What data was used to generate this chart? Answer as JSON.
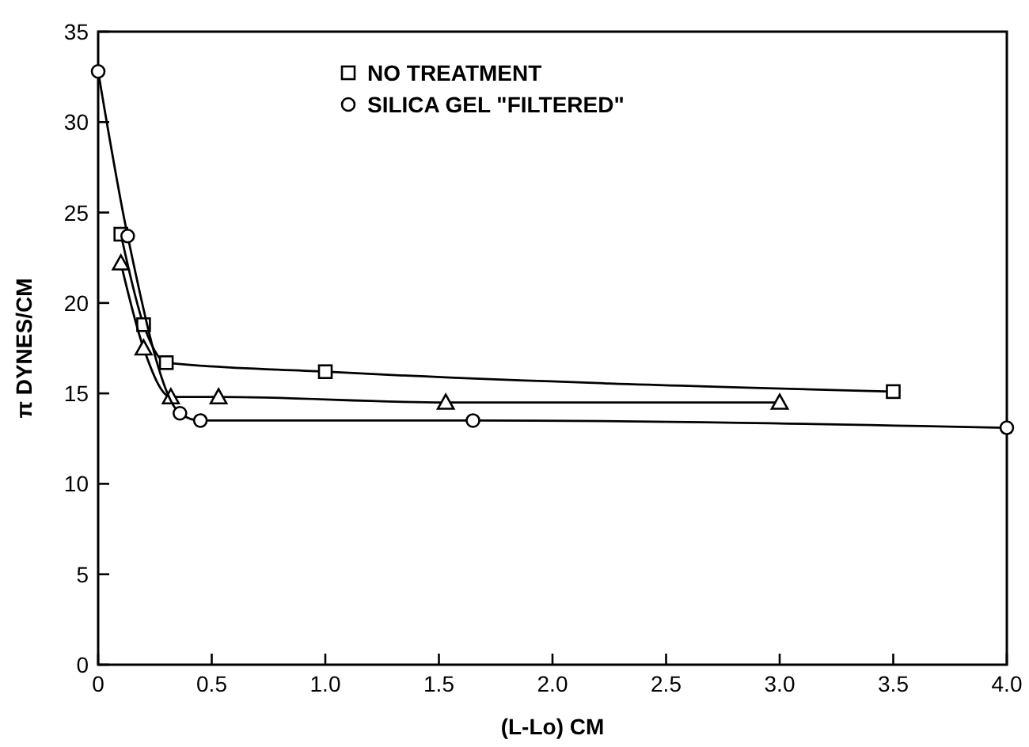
{
  "chart_data": {
    "type": "line",
    "xlabel": "(L-Lo) CM",
    "ylabel": "π DYNES/CM",
    "xlim": [
      0,
      4
    ],
    "ylim": [
      0,
      35
    ],
    "xticks": [
      0,
      {
        "value": 0.5,
        "label": "0.5"
      },
      {
        "value": 1,
        "label": "1.0"
      },
      {
        "value": 1.5,
        "label": "1.5"
      },
      {
        "value": 2,
        "label": "2.0"
      },
      {
        "value": 2.5,
        "label": "2.5"
      },
      {
        "value": 3,
        "label": "3.0"
      },
      {
        "value": 3.5,
        "label": "3.5"
      },
      {
        "value": 4,
        "label": "4.0"
      }
    ],
    "yticks": [
      0,
      5,
      10,
      15,
      20,
      25,
      30,
      35
    ],
    "legend": "top",
    "grid": false,
    "series": [
      {
        "name": "NO TREATMENT",
        "color": "#000000",
        "marker": "square",
        "x": [
          0.1,
          0.2,
          0.3,
          1.0,
          3.5
        ],
        "values": [
          23.8,
          18.8,
          16.7,
          16.2,
          15.1
        ]
      },
      {
        "color": "#000000",
        "marker": "triangle",
        "x": [
          0.1,
          0.2,
          0.32,
          0.53,
          1.53,
          3.0
        ],
        "values": [
          22.2,
          17.5,
          14.8,
          14.8,
          14.5,
          14.5
        ]
      },
      {
        "name": "SILICA GEL \"FILTERED\"",
        "color": "#000000",
        "marker": "circle",
        "x": [
          0,
          0.13,
          0.36,
          0.45,
          1.65,
          4.0
        ],
        "values": [
          32.8,
          23.7,
          13.9,
          13.5,
          13.5,
          13.1
        ]
      }
    ]
  }
}
